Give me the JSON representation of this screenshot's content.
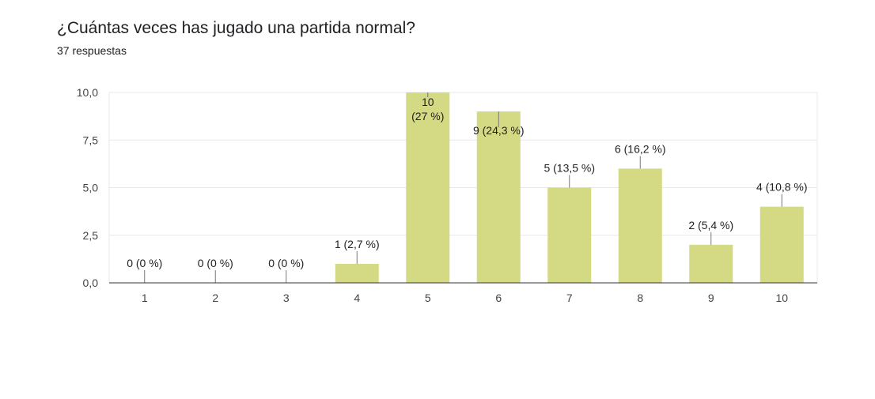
{
  "question": "¿Cuántas veces has jugado una partida normal?",
  "responses": "37 respuestas",
  "colors": {
    "bar": "#d4d984",
    "grid": "#e8e8e8",
    "axis": "#333333",
    "leader": "#777777"
  },
  "chart_data": {
    "type": "bar",
    "categories": [
      "1",
      "2",
      "3",
      "4",
      "5",
      "6",
      "7",
      "8",
      "9",
      "10"
    ],
    "values": [
      0,
      0,
      0,
      1,
      10,
      9,
      5,
      6,
      2,
      4
    ],
    "data_labels": [
      "0 (0 %)",
      "0 (0 %)",
      "0 (0 %)",
      "1 (2,7 %)",
      "10\n(27 %)",
      "9 (24,3 %)",
      "5 (13,5 %)",
      "6 (16,2 %)",
      "2 (5,4 %)",
      "4 (10,8 %)"
    ],
    "y_ticks": [
      "0,0",
      "2,5",
      "5,0",
      "7,5",
      "10,0"
    ],
    "ylim": [
      0,
      10
    ],
    "grid": true,
    "legend": "none"
  }
}
